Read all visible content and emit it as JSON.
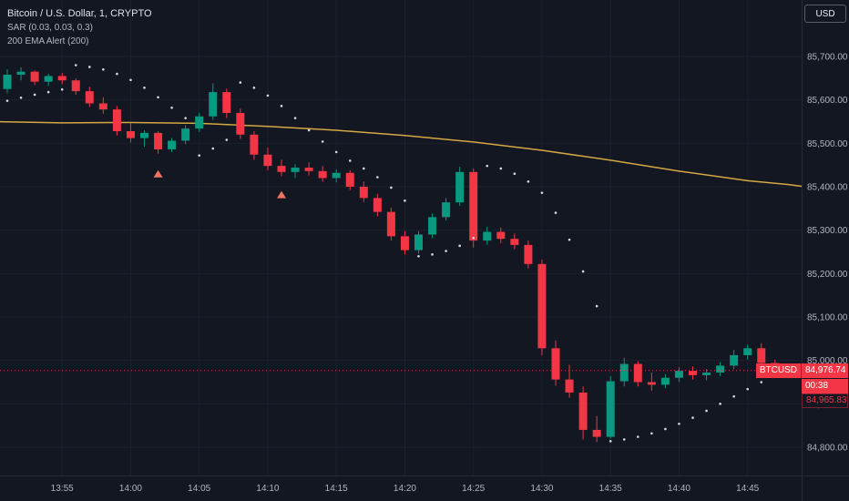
{
  "colors": {
    "background": "#131722",
    "grid": "#1c2130",
    "separator": "#262b38",
    "up": "#089981",
    "down": "#f23645",
    "sar_dot": "#d5d9e2",
    "ema": "#d4a843",
    "axis_text": "#b2b5be",
    "marker": "#f0735f",
    "price_line": "#f23645"
  },
  "legend": {
    "title": "Bitcoin / U.S. Dollar, 1, CRYPTO",
    "sar": "SAR (0.03, 0.03, 0.3)",
    "ema": "200 EMA Alert (200)"
  },
  "toolbar": {
    "currency": "USD"
  },
  "price_line": {
    "symbol": "BTCUSD",
    "last_price": "84,976.74",
    "last_price_num": 84976.74,
    "countdown": "00:38",
    "sar_value": "84,965.83",
    "sar_value_num": 84965.83
  },
  "axis": {
    "price_labels": [
      "85,700.00",
      "85,600.00",
      "85,500.00",
      "85,400.00",
      "85,300.00",
      "85,200.00",
      "85,100.00",
      "85,000.00",
      "84,900.00",
      "84,800.00"
    ],
    "time_labels": [
      "13:55",
      "14:00",
      "14:05",
      "14:10",
      "14:15",
      "14:20",
      "14:25",
      "14:30",
      "14:35",
      "14:40",
      "14:45"
    ]
  },
  "chart_data": {
    "type": "candlestick",
    "symbol": "BTCUSD",
    "interval": "1",
    "y_range": [
      84800,
      85700
    ],
    "y_grid_step": 100,
    "x_tick_times": [
      "13:55",
      "14:00",
      "14:05",
      "14:10",
      "14:15",
      "14:20",
      "14:25",
      "14:30",
      "14:35",
      "14:40",
      "14:45"
    ],
    "candles": [
      [
        "13:51",
        85625,
        85670,
        85615,
        85658
      ],
      [
        "13:52",
        85658,
        85675,
        85645,
        85665
      ],
      [
        "13:53",
        85665,
        85668,
        85634,
        85642
      ],
      [
        "13:54",
        85642,
        85660,
        85632,
        85655
      ],
      [
        "13:55",
        85655,
        85662,
        85636,
        85645
      ],
      [
        "13:56",
        85645,
        85650,
        85612,
        85620
      ],
      [
        "13:57",
        85620,
        85630,
        85584,
        85592
      ],
      [
        "13:58",
        85592,
        85606,
        85568,
        85578
      ],
      [
        "13:59",
        85578,
        85586,
        85518,
        85528
      ],
      [
        "14:00",
        85528,
        85546,
        85502,
        85512
      ],
      [
        "14:01",
        85512,
        85530,
        85492,
        85524
      ],
      [
        "14:02",
        85524,
        85528,
        85476,
        85486
      ],
      [
        "14:03",
        85486,
        85512,
        85480,
        85506
      ],
      [
        "14:04",
        85506,
        85542,
        85498,
        85534
      ],
      [
        "14:05",
        85534,
        85570,
        85526,
        85562
      ],
      [
        "14:06",
        85562,
        85638,
        85554,
        85618
      ],
      [
        "14:07",
        85618,
        85626,
        85558,
        85570
      ],
      [
        "14:08",
        85570,
        85580,
        85510,
        85520
      ],
      [
        "14:09",
        85520,
        85528,
        85462,
        85474
      ],
      [
        "14:10",
        85474,
        85490,
        85438,
        85448
      ],
      [
        "14:11",
        85448,
        85462,
        85424,
        85434
      ],
      [
        "14:12",
        85434,
        85452,
        85420,
        85444
      ],
      [
        "14:13",
        85444,
        85456,
        85426,
        85436
      ],
      [
        "14:14",
        85436,
        85448,
        85412,
        85420
      ],
      [
        "14:15",
        85420,
        85440,
        85410,
        85432
      ],
      [
        "14:16",
        85432,
        85438,
        85392,
        85400
      ],
      [
        "14:17",
        85400,
        85412,
        85365,
        85374
      ],
      [
        "14:18",
        85374,
        85384,
        85332,
        85342
      ],
      [
        "14:19",
        85342,
        85352,
        85276,
        85286
      ],
      [
        "14:20",
        85286,
        85298,
        85244,
        85254
      ],
      [
        "14:21",
        85254,
        85298,
        85246,
        85290
      ],
      [
        "14:22",
        85290,
        85338,
        85282,
        85330
      ],
      [
        "14:23",
        85330,
        85374,
        85322,
        85364
      ],
      [
        "14:24",
        85364,
        85446,
        85356,
        85434
      ],
      [
        "14:25",
        85434,
        85442,
        85260,
        85276
      ],
      [
        "14:26",
        85276,
        85308,
        85266,
        85296
      ],
      [
        "14:27",
        85296,
        85306,
        85270,
        85280
      ],
      [
        "14:28",
        85280,
        85292,
        85256,
        85266
      ],
      [
        "14:29",
        85266,
        85276,
        85212,
        85222
      ],
      [
        "14:30",
        85222,
        85232,
        85012,
        85028
      ],
      [
        "14:31",
        85028,
        85046,
        84942,
        84956
      ],
      [
        "14:32",
        84956,
        84990,
        84914,
        84926
      ],
      [
        "14:33",
        84926,
        84940,
        84818,
        84840
      ],
      [
        "14:34",
        84840,
        84872,
        84812,
        84824
      ],
      [
        "14:35",
        84824,
        84964,
        84820,
        84952
      ],
      [
        "14:36",
        84952,
        85006,
        84940,
        84992
      ],
      [
        "14:37",
        84992,
        84998,
        84940,
        84950
      ],
      [
        "14:38",
        84950,
        84972,
        84930,
        84944
      ],
      [
        "14:39",
        84944,
        84968,
        84936,
        84960
      ],
      [
        "14:40",
        84960,
        84984,
        84950,
        84976
      ],
      [
        "14:41",
        84976,
        84986,
        84956,
        84966
      ],
      [
        "14:42",
        84966,
        84980,
        84954,
        84972
      ],
      [
        "14:43",
        84972,
        84996,
        84964,
        84988
      ],
      [
        "14:44",
        84988,
        85024,
        84980,
        85012
      ],
      [
        "14:45",
        85012,
        85036,
        85002,
        85028
      ],
      [
        "14:46",
        85028,
        85040,
        84984,
        84994
      ],
      [
        "14:47",
        84994,
        85002,
        84960,
        84976.74
      ]
    ],
    "sar_dots": [
      [
        "13:51",
        85598
      ],
      [
        "13:52",
        85605
      ],
      [
        "13:53",
        85612
      ],
      [
        "13:54",
        85618
      ],
      [
        "13:55",
        85624
      ],
      [
        "13:56",
        85680
      ],
      [
        "13:57",
        85676
      ],
      [
        "13:58",
        85670
      ],
      [
        "13:59",
        85660
      ],
      [
        "14:00",
        85646
      ],
      [
        "14:01",
        85628
      ],
      [
        "14:02",
        85606
      ],
      [
        "14:03",
        85582
      ],
      [
        "14:04",
        85558
      ],
      [
        "14:05",
        85472
      ],
      [
        "14:06",
        85488
      ],
      [
        "14:07",
        85508
      ],
      [
        "14:08",
        85640
      ],
      [
        "14:09",
        85628
      ],
      [
        "14:10",
        85610
      ],
      [
        "14:11",
        85586
      ],
      [
        "14:12",
        85558
      ],
      [
        "14:13",
        85530
      ],
      [
        "14:14",
        85504
      ],
      [
        "14:15",
        85480
      ],
      [
        "14:16",
        85460
      ],
      [
        "14:17",
        85442
      ],
      [
        "14:18",
        85422
      ],
      [
        "14:19",
        85398
      ],
      [
        "14:20",
        85368
      ],
      [
        "14:21",
        85240
      ],
      [
        "14:22",
        85244
      ],
      [
        "14:23",
        85252
      ],
      [
        "14:24",
        85264
      ],
      [
        "14:25",
        85282
      ],
      [
        "14:26",
        85448
      ],
      [
        "14:27",
        85442
      ],
      [
        "14:28",
        85430
      ],
      [
        "14:29",
        85412
      ],
      [
        "14:30",
        85386
      ],
      [
        "14:31",
        85340
      ],
      [
        "14:32",
        85278
      ],
      [
        "14:33",
        85205
      ],
      [
        "14:34",
        85125
      ],
      [
        "14:35",
        84814
      ],
      [
        "14:36",
        84818
      ],
      [
        "14:37",
        84824
      ],
      [
        "14:38",
        84832
      ],
      [
        "14:39",
        84842
      ],
      [
        "14:40",
        84854
      ],
      [
        "14:41",
        84868
      ],
      [
        "14:42",
        84884
      ],
      [
        "14:43",
        84900
      ],
      [
        "14:44",
        84917
      ],
      [
        "14:45",
        84934
      ],
      [
        "14:46",
        84950
      ],
      [
        "14:47",
        84966
      ]
    ],
    "ema_points": [
      [
        "13:50",
        85550
      ],
      [
        "13:55",
        85547
      ],
      [
        "14:00",
        85548
      ],
      [
        "14:05",
        85546
      ],
      [
        "14:10",
        85539
      ],
      [
        "14:15",
        85530
      ],
      [
        "14:20",
        85518
      ],
      [
        "14:25",
        85503
      ],
      [
        "14:30",
        85484
      ],
      [
        "14:35",
        85461
      ],
      [
        "14:40",
        85436
      ],
      [
        "14:45",
        85414
      ],
      [
        "14:48",
        85405
      ],
      [
        "14:49",
        85401
      ]
    ],
    "markers": [
      {
        "time": "14:02",
        "price": 85430,
        "shape": "triangle-up"
      },
      {
        "time": "14:11",
        "price": 85382,
        "shape": "triangle-up"
      }
    ]
  }
}
